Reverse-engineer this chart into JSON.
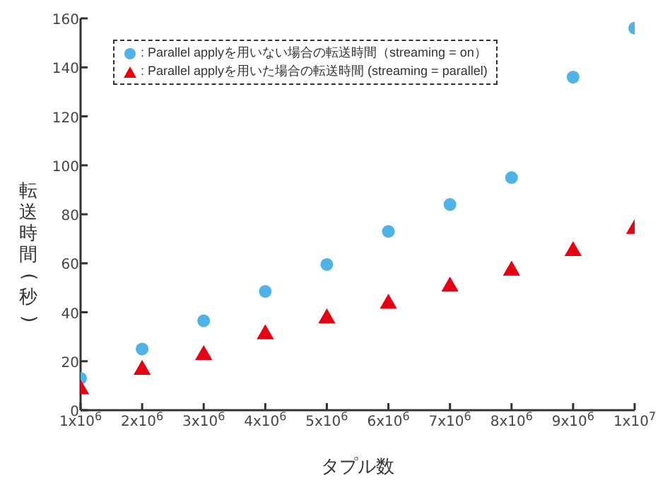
{
  "chart_data": {
    "type": "scatter",
    "xlabel": "タプル数",
    "ylabel": "転送時間(秒)",
    "x": [
      1000000,
      2000000,
      3000000,
      4000000,
      5000000,
      6000000,
      7000000,
      8000000,
      9000000,
      10000000
    ],
    "series": [
      {
        "name": ": Parallel applyを用いない場合の転送時間（streaming = on）",
        "color": "#4fb3e8",
        "marker": "circle",
        "values": [
          13,
          25,
          36.5,
          48.5,
          59.5,
          73,
          84,
          95,
          136,
          156
        ]
      },
      {
        "name": ": Parallel applyを用いた場合の転送時間 (streaming = parallel)",
        "color": "#e60012",
        "marker": "triangle",
        "values": [
          8.5,
          16.5,
          22.5,
          31,
          37.5,
          43.5,
          50.5,
          57,
          65,
          74
        ]
      }
    ],
    "xlim": [
      1000000,
      10000000
    ],
    "xticks": [
      {
        "value": 1000000,
        "label": "1x10$^{6}$"
      },
      {
        "value": 2000000,
        "label": "2x10$^{6}$"
      },
      {
        "value": 3000000,
        "label": "3x10$^{6}$"
      },
      {
        "value": 4000000,
        "label": "4x10$^{6}$"
      },
      {
        "value": 5000000,
        "label": "5x10$^{6}$"
      },
      {
        "value": 6000000,
        "label": "6x10$^{6}$"
      },
      {
        "value": 7000000,
        "label": "7x10$^{6}$"
      },
      {
        "value": 8000000,
        "label": "8x10$^{6}$"
      },
      {
        "value": 9000000,
        "label": "9x10$^{6}$"
      },
      {
        "value": 10000000,
        "label": "1x10$^{7}$"
      }
    ],
    "ylim": [
      0,
      160
    ],
    "yticks": [
      0,
      20,
      40,
      60,
      80,
      100,
      120,
      140,
      160
    ],
    "legend": "top left",
    "grid": false
  }
}
